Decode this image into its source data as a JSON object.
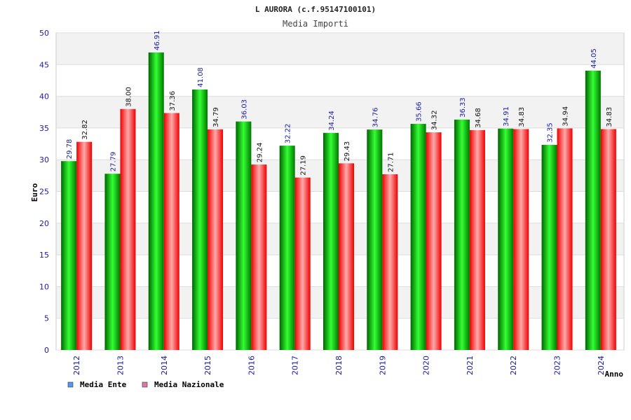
{
  "chart_data": {
    "type": "bar",
    "title": "L AURORA (c.f.95147100101)",
    "subtitle": "Media Importi",
    "xlabel": "Anno",
    "ylabel": "Euro",
    "ylim": [
      0,
      50
    ],
    "yticks": [
      0,
      5,
      10,
      15,
      20,
      25,
      30,
      35,
      40,
      45,
      50
    ],
    "grid": true,
    "legend_position": "bottom-left",
    "categories": [
      "2012",
      "2013",
      "2014",
      "2015",
      "2016",
      "2017",
      "2018",
      "2019",
      "2020",
      "2021",
      "2022",
      "2023",
      "2024"
    ],
    "series": [
      {
        "name": "Media Ente",
        "color": "#00bb00",
        "legend_color": "#5599ee",
        "values": [
          29.78,
          27.79,
          46.91,
          41.08,
          36.03,
          32.22,
          34.24,
          34.76,
          35.66,
          36.33,
          34.91,
          32.35,
          44.05
        ],
        "labels": [
          "29.78",
          "27.79",
          "46.91",
          "41.08",
          "36.03",
          "32.22",
          "34.24",
          "34.76",
          "35.66",
          "36.33",
          "34.91",
          "32.35",
          "44.05"
        ]
      },
      {
        "name": "Media Nazionale",
        "color": "#ee1111",
        "legend_color": "#dd77aa",
        "values": [
          32.82,
          38.0,
          37.36,
          34.79,
          29.24,
          27.19,
          29.43,
          27.71,
          34.32,
          34.68,
          34.83,
          34.94,
          34.83
        ],
        "labels": [
          "32.82",
          "38.00",
          "37.36",
          "34.79",
          "29.24",
          "27.19",
          "29.43",
          "27.71",
          "34.32",
          "34.68",
          "34.83",
          "34.94",
          "34.83"
        ]
      }
    ]
  }
}
